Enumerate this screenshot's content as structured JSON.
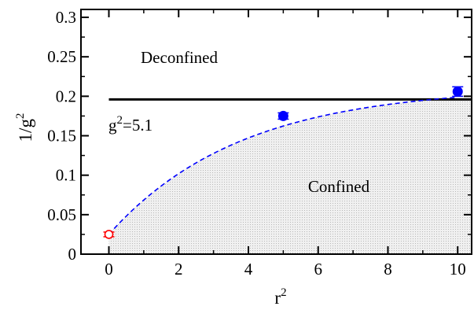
{
  "chart_data": {
    "type": "scatter",
    "xlim": [
      -0.8,
      10.4
    ],
    "ylim": [
      0,
      0.31
    ],
    "x_ticks": [
      0,
      2,
      4,
      6,
      8,
      10
    ],
    "x_tick_labels": [
      "0",
      "2",
      "4",
      "6",
      "8",
      "10"
    ],
    "y_ticks": [
      0,
      0.05,
      0.1,
      0.15,
      0.2,
      0.25,
      0.3
    ],
    "y_tick_labels": [
      "0",
      "0.05",
      "0.1",
      "0.15",
      "0.2",
      "0.25",
      "0.3"
    ],
    "xlabel": {
      "base": "r",
      "sup": "2"
    },
    "ylabel": {
      "base": "1/g",
      "sup": "2"
    },
    "grid": false,
    "series": [
      {
        "marker": "filled-circle",
        "color": "#0000ff",
        "x": [
          5,
          10
        ],
        "y": [
          0.175,
          0.206
        ],
        "yerr": [
          0.004,
          0.006
        ]
      },
      {
        "marker": "open-circle",
        "color": "#ff0000",
        "x": [
          0
        ],
        "y": [
          0.025
        ],
        "yerr": [
          0.003
        ]
      }
    ],
    "fit_curve": {
      "style": "dashed",
      "color": "#0000ff",
      "form": "a - b*exp(-c*x)",
      "params": {
        "a": 0.212,
        "b": 0.187,
        "c": 0.265
      },
      "x_range": [
        0,
        10
      ]
    },
    "critical_line": {
      "y": 0.196,
      "color": "#000000",
      "label": {
        "base": "g",
        "sup": "2",
        "rest": "=5.1"
      }
    },
    "confined_region_fill": "#dcdcdc",
    "annotations": {
      "deconfined": "Deconfined",
      "confined": "Confined"
    }
  }
}
